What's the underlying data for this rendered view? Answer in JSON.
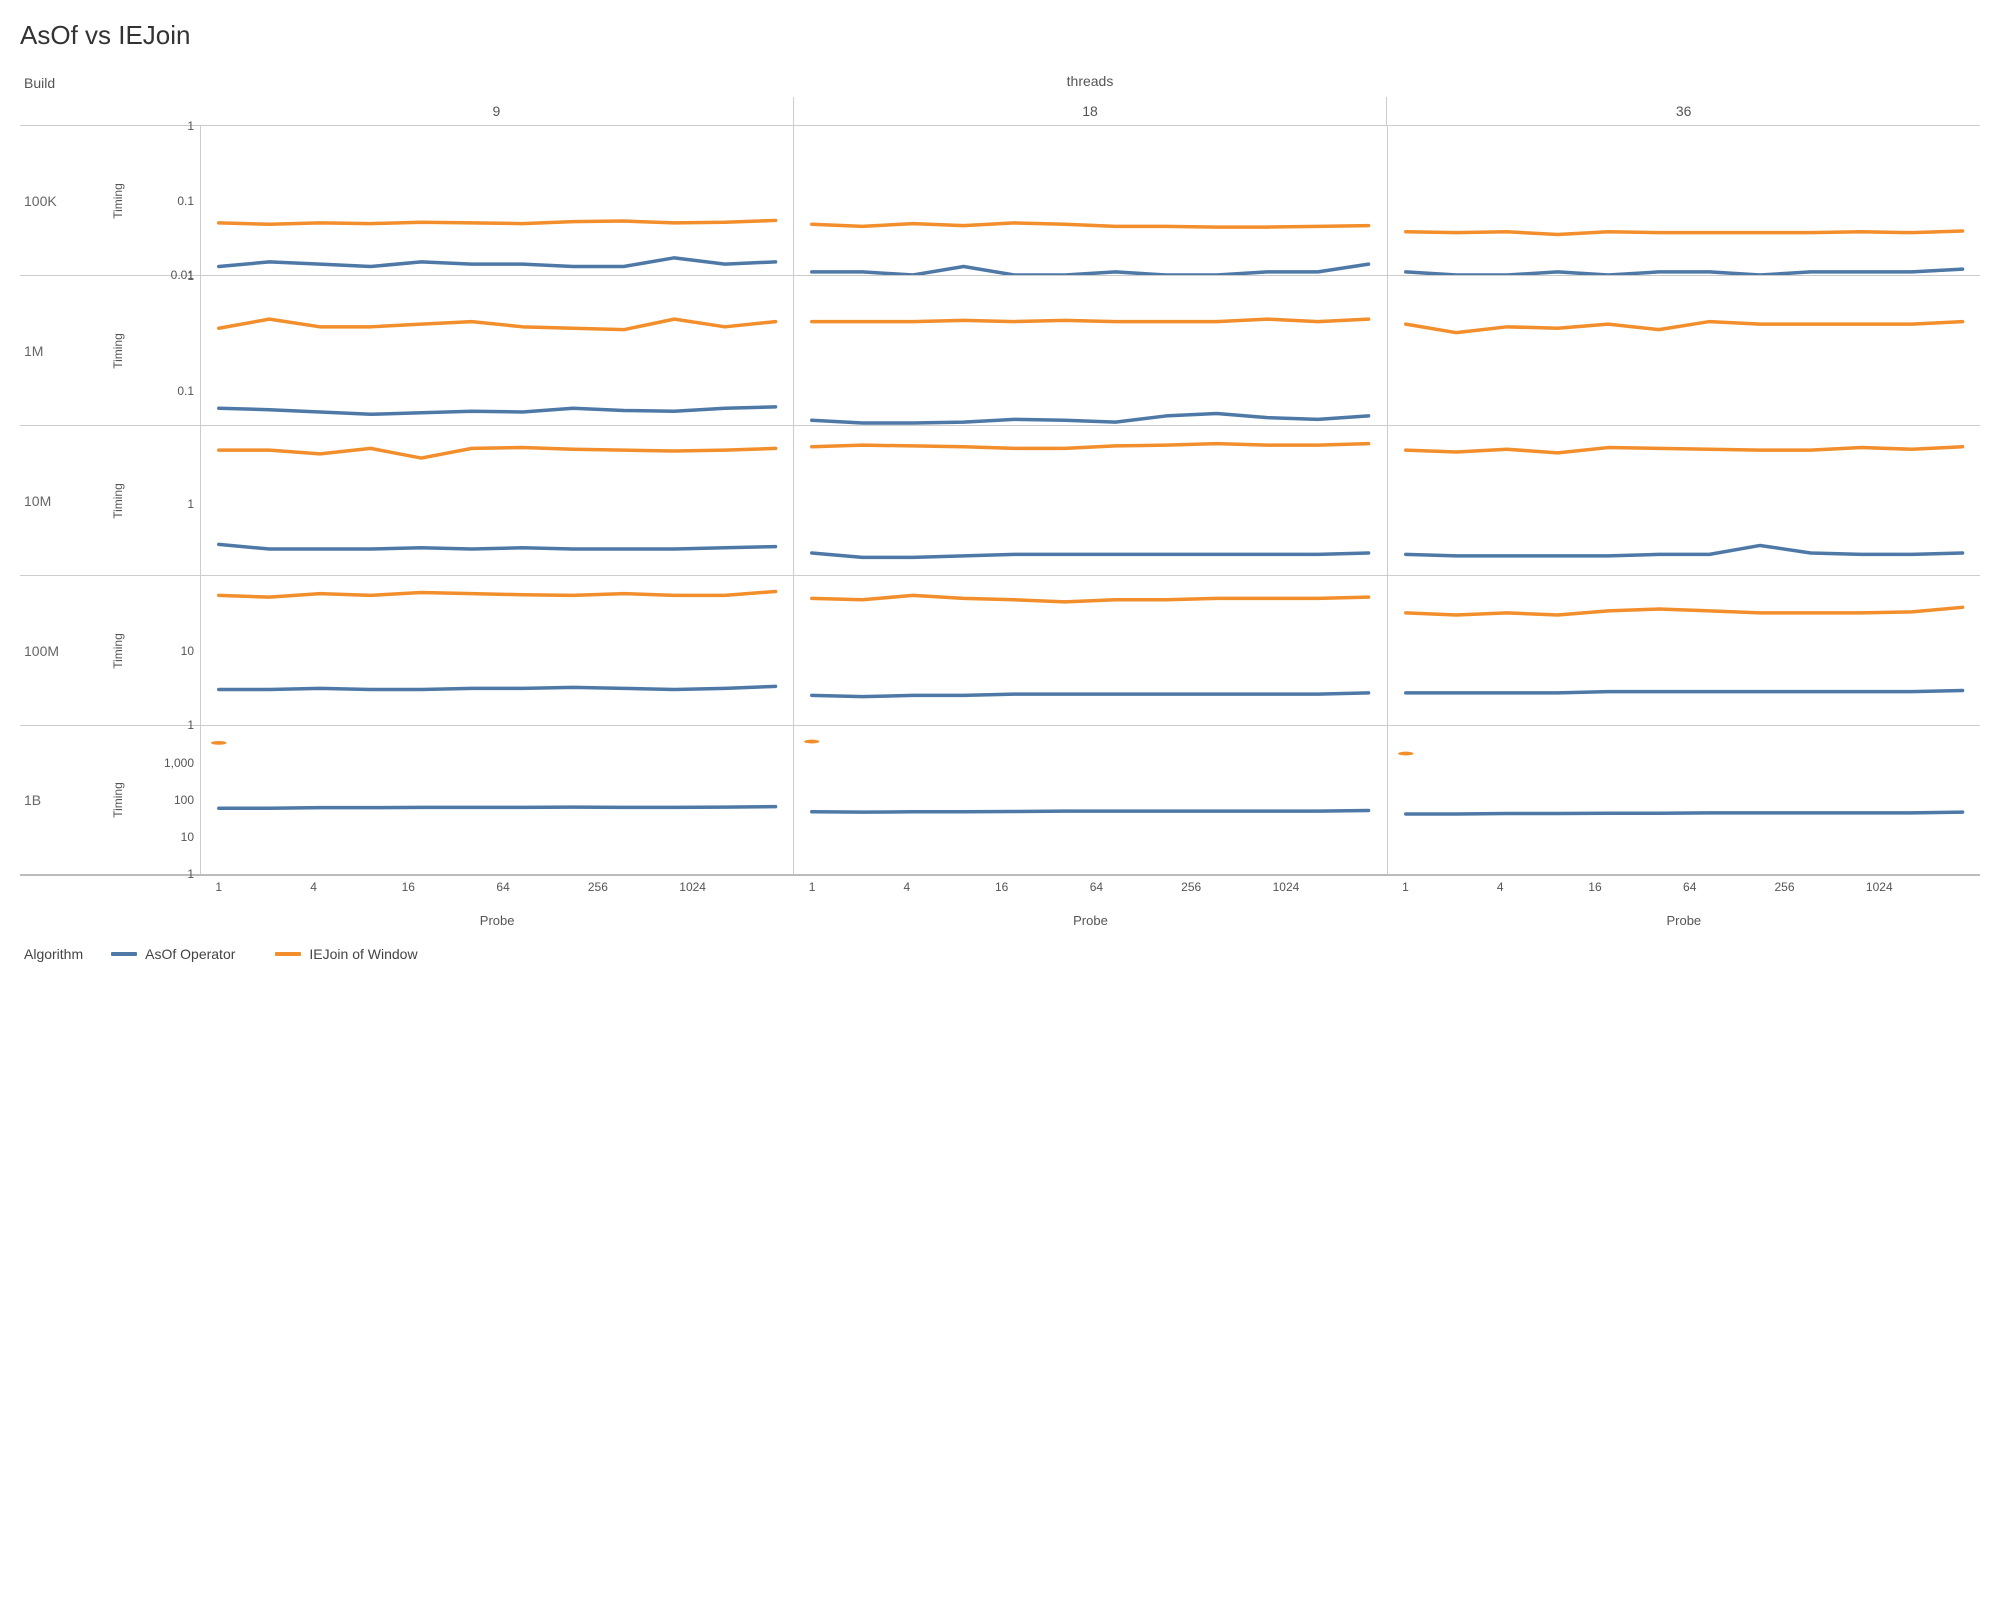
{
  "title": "AsOf vs IEJoin",
  "colors": {
    "asof": "#4e79a7",
    "iejoin": "#f28e2b",
    "grid": "#cccccc",
    "background": "#ffffff",
    "text": "#555555"
  },
  "line_width": 3.5,
  "columns_header": "threads",
  "rows_header": "Build",
  "y_axis_label": "Timing",
  "x_axis_label": "Probe",
  "thread_columns": [
    "9",
    "18",
    "36"
  ],
  "x_ticks": [
    "1",
    "4",
    "16",
    "64",
    "256",
    "1024"
  ],
  "x_tick_positions_pct": [
    3,
    19,
    35,
    51,
    67,
    83
  ],
  "legend": {
    "title": "Algorithm",
    "items": [
      {
        "label": "AsOf Operator",
        "color_key": "asof"
      },
      {
        "label": "IEJoin of Window",
        "color_key": "iejoin"
      }
    ]
  },
  "rows": [
    {
      "label": "100K",
      "y_range": [
        0.01,
        1
      ],
      "y_ticks": [
        {
          "value": 1,
          "label": "1"
        },
        {
          "value": 0.1,
          "label": "0.1"
        },
        {
          "value": 0.01,
          "label": "0.01"
        }
      ],
      "panels": {
        "9": {
          "asof": [
            0.013,
            0.015,
            0.014,
            0.013,
            0.015,
            0.014,
            0.014,
            0.013,
            0.013,
            0.017,
            0.014,
            0.015
          ],
          "iejoin": [
            0.05,
            0.048,
            0.05,
            0.049,
            0.051,
            0.05,
            0.049,
            0.052,
            0.053,
            0.05,
            0.051,
            0.054
          ]
        },
        "18": {
          "asof": [
            0.011,
            0.011,
            0.01,
            0.013,
            0.01,
            0.01,
            0.011,
            0.01,
            0.01,
            0.011,
            0.011,
            0.014
          ],
          "iejoin": [
            0.048,
            0.045,
            0.049,
            0.046,
            0.05,
            0.048,
            0.045,
            0.045,
            0.044,
            0.044,
            0.045,
            0.046
          ]
        },
        "36": {
          "asof": [
            0.011,
            0.01,
            0.01,
            0.011,
            0.01,
            0.011,
            0.011,
            0.01,
            0.011,
            0.011,
            0.011,
            0.012
          ],
          "iejoin": [
            0.038,
            0.037,
            0.038,
            0.035,
            0.038,
            0.037,
            0.037,
            0.037,
            0.037,
            0.038,
            0.037,
            0.039
          ]
        }
      }
    },
    {
      "label": "1M",
      "y_range": [
        0.05,
        1
      ],
      "y_ticks": [
        {
          "value": 1,
          "label": "1"
        },
        {
          "value": 0.1,
          "label": "0.1"
        }
      ],
      "panels": {
        "9": {
          "asof": [
            0.07,
            0.068,
            0.065,
            0.062,
            0.064,
            0.066,
            0.065,
            0.07,
            0.067,
            0.066,
            0.07,
            0.072
          ],
          "iejoin": [
            0.35,
            0.42,
            0.36,
            0.36,
            0.38,
            0.4,
            0.36,
            0.35,
            0.34,
            0.42,
            0.36,
            0.4
          ]
        },
        "18": {
          "asof": [
            0.055,
            0.052,
            0.052,
            0.053,
            0.056,
            0.055,
            0.053,
            0.06,
            0.063,
            0.058,
            0.056,
            0.06
          ],
          "iejoin": [
            0.4,
            0.4,
            0.4,
            0.41,
            0.4,
            0.41,
            0.4,
            0.4,
            0.4,
            0.42,
            0.4,
            0.42
          ]
        },
        "36": {
          "asof": [
            0.045,
            0.042,
            0.04,
            0.041,
            0.04,
            0.042,
            0.044,
            0.048,
            0.043,
            0.042,
            0.041,
            0.043
          ],
          "iejoin": [
            0.38,
            0.32,
            0.36,
            0.35,
            0.38,
            0.34,
            0.4,
            0.38,
            0.38,
            0.38,
            0.38,
            0.4
          ]
        }
      }
    },
    {
      "label": "10M",
      "y_range": [
        0.15,
        8
      ],
      "y_ticks": [
        {
          "value": 1,
          "label": "1"
        }
      ],
      "panels": {
        "9": {
          "asof": [
            0.34,
            0.3,
            0.3,
            0.3,
            0.31,
            0.3,
            0.31,
            0.3,
            0.3,
            0.3,
            0.31,
            0.32
          ],
          "iejoin": [
            4.2,
            4.2,
            3.8,
            4.4,
            3.4,
            4.4,
            4.5,
            4.3,
            4.2,
            4.1,
            4.2,
            4.4
          ]
        },
        "18": {
          "asof": [
            0.27,
            0.24,
            0.24,
            0.25,
            0.26,
            0.26,
            0.26,
            0.26,
            0.26,
            0.26,
            0.26,
            0.27
          ],
          "iejoin": [
            4.6,
            4.8,
            4.7,
            4.6,
            4.4,
            4.4,
            4.7,
            4.8,
            5.0,
            4.8,
            4.8,
            5.0
          ]
        },
        "36": {
          "asof": [
            0.26,
            0.25,
            0.25,
            0.25,
            0.25,
            0.26,
            0.26,
            0.33,
            0.27,
            0.26,
            0.26,
            0.27
          ],
          "iejoin": [
            4.2,
            4.0,
            4.3,
            3.9,
            4.5,
            4.4,
            4.3,
            4.2,
            4.2,
            4.5,
            4.3,
            4.6
          ]
        }
      }
    },
    {
      "label": "100M",
      "y_range": [
        1,
        100
      ],
      "y_ticks": [
        {
          "value": 10,
          "label": "10"
        },
        {
          "value": 1,
          "label": "1"
        }
      ],
      "panels": {
        "9": {
          "asof": [
            3.0,
            3.0,
            3.1,
            3.0,
            3.0,
            3.1,
            3.1,
            3.2,
            3.1,
            3.0,
            3.1,
            3.3
          ],
          "iejoin": [
            55,
            52,
            58,
            55,
            60,
            58,
            56,
            55,
            58,
            55,
            55,
            62
          ]
        },
        "18": {
          "asof": [
            2.5,
            2.4,
            2.5,
            2.5,
            2.6,
            2.6,
            2.6,
            2.6,
            2.6,
            2.6,
            2.6,
            2.7
          ],
          "iejoin": [
            50,
            48,
            55,
            50,
            48,
            45,
            48,
            48,
            50,
            50,
            50,
            52
          ]
        },
        "36": {
          "asof": [
            2.7,
            2.7,
            2.7,
            2.7,
            2.8,
            2.8,
            2.8,
            2.8,
            2.8,
            2.8,
            2.8,
            2.9
          ],
          "iejoin": [
            32,
            30,
            32,
            30,
            34,
            36,
            34,
            32,
            32,
            32,
            33,
            38
          ]
        }
      }
    },
    {
      "label": "1B",
      "y_range": [
        1,
        10000
      ],
      "y_ticks": [
        {
          "value": 1000,
          "label": "1,000"
        },
        {
          "value": 100,
          "label": "100"
        },
        {
          "value": 10,
          "label": "10"
        },
        {
          "value": 1,
          "label": "1"
        }
      ],
      "panels": {
        "9": {
          "asof": [
            60,
            60,
            62,
            62,
            63,
            63,
            63,
            64,
            63,
            63,
            64,
            66
          ],
          "iejoin": [
            3500
          ]
        },
        "18": {
          "asof": [
            48,
            47,
            48,
            48,
            49,
            50,
            50,
            50,
            50,
            50,
            50,
            52
          ],
          "iejoin": [
            3800
          ]
        },
        "36": {
          "asof": [
            42,
            42,
            43,
            43,
            44,
            44,
            45,
            45,
            45,
            45,
            45,
            47
          ],
          "iejoin": [
            1800
          ]
        }
      }
    }
  ]
}
